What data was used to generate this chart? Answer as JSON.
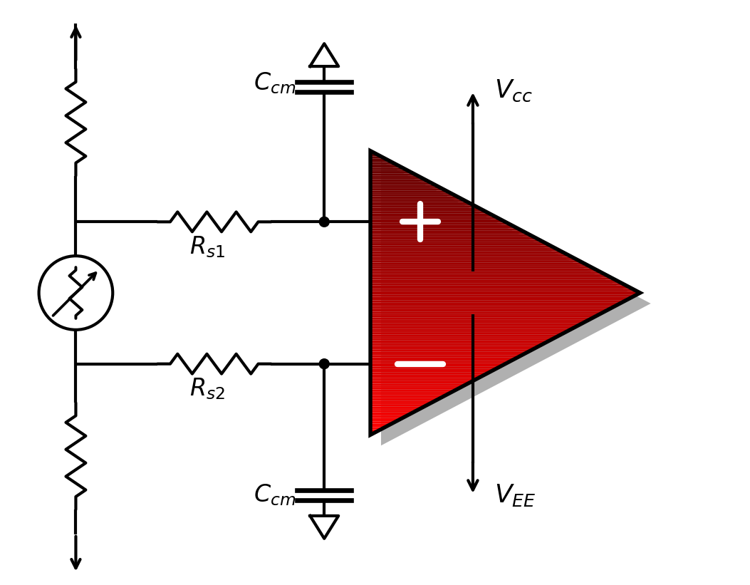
{
  "bg_color": "#ffffff",
  "line_color": "#000000",
  "line_width": 3.0,
  "opamp_color_dark": "#6b0000",
  "opamp_color_bright": "#ff0000",
  "opamp_shadow_color": "#b0b0b0",
  "opamp_outline": "#000000",
  "plus_minus_color": "#ffffff",
  "figsize": [
    10.53,
    8.21
  ],
  "dpi": 100
}
